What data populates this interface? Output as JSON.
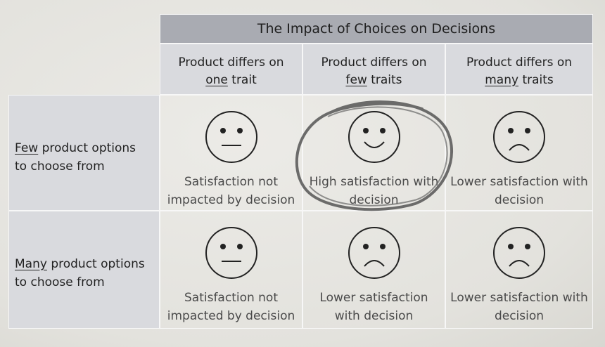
{
  "title": "The Impact of Choices on Decisions",
  "columns": [
    {
      "before": "Product differs on",
      "underlined": "one",
      "after": "trait"
    },
    {
      "before": "Product differs on",
      "underlined": "few",
      "after": "traits"
    },
    {
      "before": "Product differs on",
      "underlined": "many",
      "after": "traits"
    }
  ],
  "rows": [
    {
      "underlined": "Few",
      "after": "product options to choose from",
      "cells": [
        "Satisfaction not impacted by decision",
        "High satisfaction with decision",
        "Lower satisfaction with decision"
      ]
    },
    {
      "underlined": "Many",
      "after": "product options to choose from",
      "cells": [
        "Satisfaction not impacted by decision",
        "Lower satisfaction with decision",
        "Lower satisfaction with decision"
      ]
    }
  ]
}
